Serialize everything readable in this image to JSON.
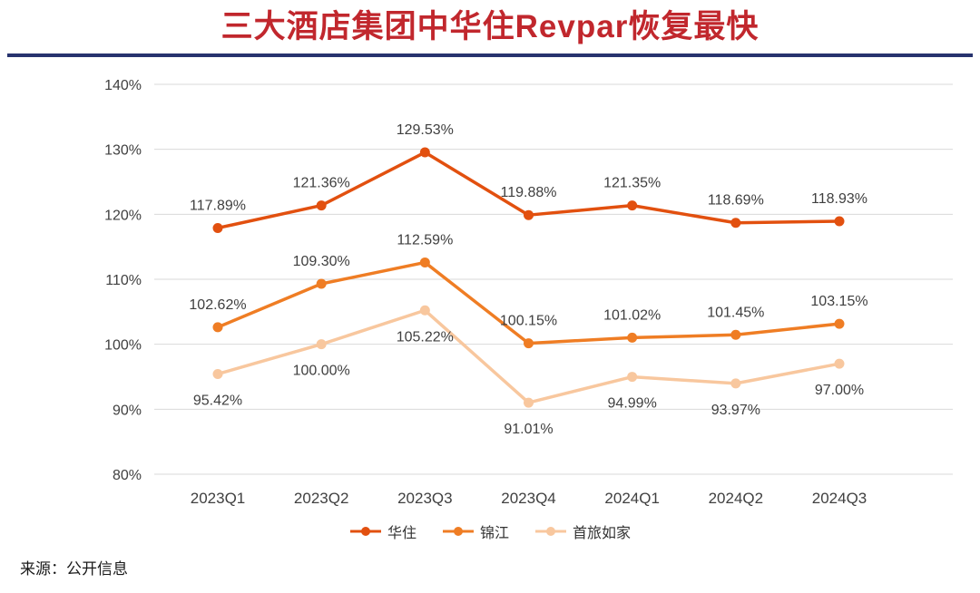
{
  "page": {
    "title": "三大酒店集团中华住Revpar恢复最快",
    "source": "来源：公开信息"
  },
  "chart_data": {
    "type": "line",
    "title": "三大酒店集团中华住Revpar恢复最快",
    "categories": [
      "2023Q1",
      "2023Q2",
      "2023Q3",
      "2023Q4",
      "2024Q1",
      "2024Q2",
      "2024Q3"
    ],
    "series": [
      {
        "name": "华住",
        "color": "#e2500f",
        "marker": "circle",
        "label_side": "above",
        "values": [
          117.89,
          121.36,
          129.53,
          119.88,
          121.35,
          118.69,
          118.93
        ]
      },
      {
        "name": "锦江",
        "color": "#ef7d24",
        "marker": "circle",
        "label_side": "above",
        "values": [
          102.62,
          109.3,
          112.59,
          100.15,
          101.02,
          101.45,
          103.15
        ]
      },
      {
        "name": "首旅如家",
        "color": "#f8c79e",
        "marker": "circle",
        "label_side": "below",
        "values": [
          95.42,
          100.0,
          105.22,
          91.01,
          94.99,
          93.97,
          97.0
        ]
      }
    ],
    "ylim": [
      80,
      140
    ],
    "ytick_step": 10,
    "ytick_suffix": "%",
    "value_suffix": "%",
    "value_decimals": 2,
    "grid": true,
    "legend_position": "bottom"
  },
  "colors": {
    "title": "#c1272d",
    "rule": "#27336e",
    "grid": "#d9d9d9",
    "axis_text": "#404040",
    "data_label": "#3f3f3f",
    "source_text": "#1a1a1a"
  }
}
